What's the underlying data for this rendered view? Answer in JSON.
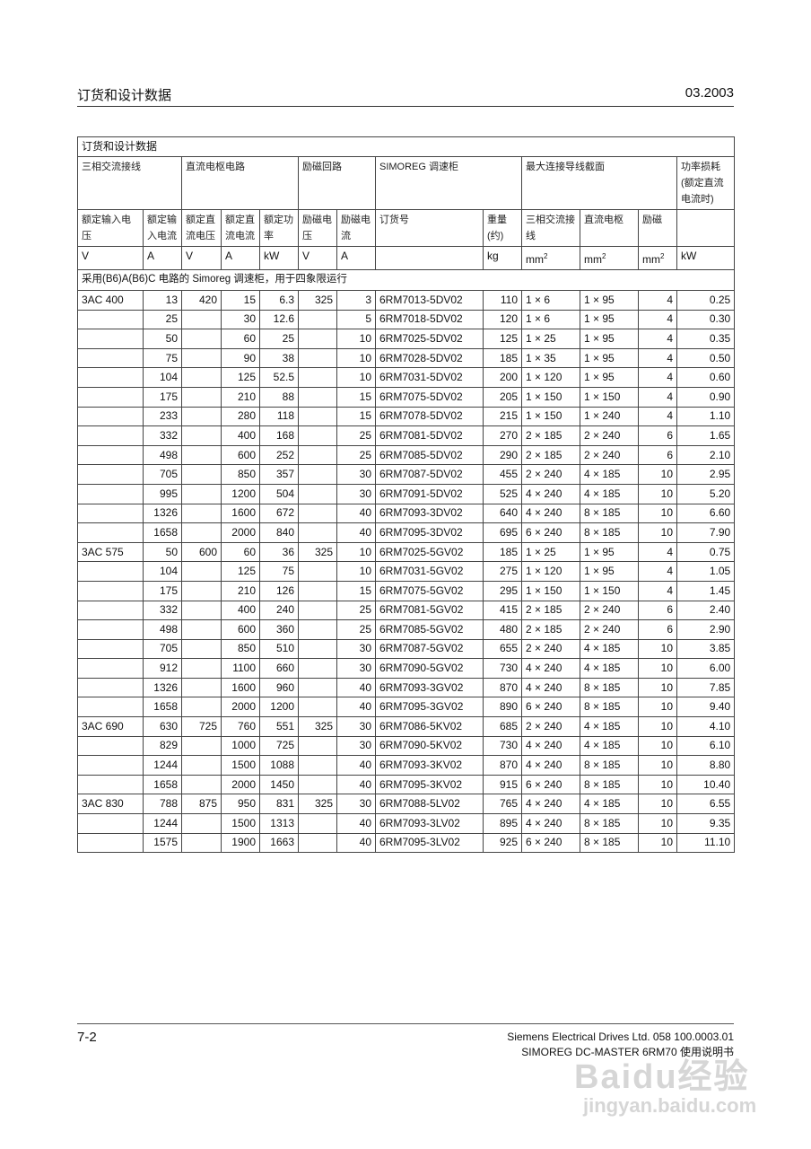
{
  "header": {
    "title": "订货和设计数据",
    "date": "03.2003"
  },
  "table": {
    "title": "订货和设计数据",
    "groups": [
      "三相交流接线",
      "直流电枢电路",
      "励磁回路",
      "SIMOREG 调速柜",
      "最大连接导线截面",
      "功率损耗(额定直流电流时)"
    ],
    "subheaders": [
      "额定输入电压",
      "额定输入电流",
      "额定直流电压",
      "额定直流电流",
      "额定功率",
      "励磁电压",
      "励磁电流",
      "订货号",
      "重量(约)",
      "三相交流接线",
      "直流电枢",
      "励磁",
      ""
    ],
    "units": [
      "V",
      "A",
      "V",
      "A",
      "kW",
      "V",
      "A",
      "",
      "kg",
      "mm2",
      "mm2",
      "mm2",
      "kW"
    ],
    "note": "采用(B6)A(B6)C 电路的 Simoreg 调速柜，用于四象限运行",
    "rows": [
      [
        "3AC 400",
        "13",
        "420",
        "15",
        "6.3",
        "325",
        "3",
        "6RM7013-5DV02",
        "110",
        "1 × 6",
        "1 × 95",
        "4",
        "0.25"
      ],
      [
        "",
        "25",
        "",
        "30",
        "12.6",
        "",
        "5",
        "6RM7018-5DV02",
        "120",
        "1 × 6",
        "1 × 95",
        "4",
        "0.30"
      ],
      [
        "",
        "50",
        "",
        "60",
        "25",
        "",
        "10",
        "6RM7025-5DV02",
        "125",
        "1 × 25",
        "1 × 95",
        "4",
        "0.35"
      ],
      [
        "",
        "75",
        "",
        "90",
        "38",
        "",
        "10",
        "6RM7028-5DV02",
        "185",
        "1 × 35",
        "1 × 95",
        "4",
        "0.50"
      ],
      [
        "",
        "104",
        "",
        "125",
        "52.5",
        "",
        "10",
        "6RM7031-5DV02",
        "200",
        "1 × 120",
        "1 × 95",
        "4",
        "0.60"
      ],
      [
        "",
        "175",
        "",
        "210",
        "88",
        "",
        "15",
        "6RM7075-5DV02",
        "205",
        "1 × 150",
        "1 × 150",
        "4",
        "0.90"
      ],
      [
        "",
        "233",
        "",
        "280",
        "118",
        "",
        "15",
        "6RM7078-5DV02",
        "215",
        "1 × 150",
        "1 × 240",
        "4",
        "1.10"
      ],
      [
        "",
        "332",
        "",
        "400",
        "168",
        "",
        "25",
        "6RM7081-5DV02",
        "270",
        "2 × 185",
        "2 × 240",
        "6",
        "1.65"
      ],
      [
        "",
        "498",
        "",
        "600",
        "252",
        "",
        "25",
        "6RM7085-5DV02",
        "290",
        "2 × 185",
        "2 × 240",
        "6",
        "2.10"
      ],
      [
        "",
        "705",
        "",
        "850",
        "357",
        "",
        "30",
        "6RM7087-5DV02",
        "455",
        "2 × 240",
        "4 × 185",
        "10",
        "2.95"
      ],
      [
        "",
        "995",
        "",
        "1200",
        "504",
        "",
        "30",
        "6RM7091-5DV02",
        "525",
        "4 × 240",
        "4 × 185",
        "10",
        "5.20"
      ],
      [
        "",
        "1326",
        "",
        "1600",
        "672",
        "",
        "40",
        "6RM7093-3DV02",
        "640",
        "4 × 240",
        "8 × 185",
        "10",
        "6.60"
      ],
      [
        "",
        "1658",
        "",
        "2000",
        "840",
        "",
        "40",
        "6RM7095-3DV02",
        "695",
        "6 × 240",
        "8 × 185",
        "10",
        "7.90"
      ],
      [
        "3AC 575",
        "50",
        "600",
        "60",
        "36",
        "325",
        "10",
        "6RM7025-5GV02",
        "185",
        "1 × 25",
        "1 × 95",
        "4",
        "0.75"
      ],
      [
        "",
        "104",
        "",
        "125",
        "75",
        "",
        "10",
        "6RM7031-5GV02",
        "275",
        "1 × 120",
        "1 × 95",
        "4",
        "1.05"
      ],
      [
        "",
        "175",
        "",
        "210",
        "126",
        "",
        "15",
        "6RM7075-5GV02",
        "295",
        "1 × 150",
        "1 × 150",
        "4",
        "1.45"
      ],
      [
        "",
        "332",
        "",
        "400",
        "240",
        "",
        "25",
        "6RM7081-5GV02",
        "415",
        "2 × 185",
        "2 × 240",
        "6",
        "2.40"
      ],
      [
        "",
        "498",
        "",
        "600",
        "360",
        "",
        "25",
        "6RM7085-5GV02",
        "480",
        "2 × 185",
        "2 × 240",
        "6",
        "2.90"
      ],
      [
        "",
        "705",
        "",
        "850",
        "510",
        "",
        "30",
        "6RM7087-5GV02",
        "655",
        "2 × 240",
        "4 × 185",
        "10",
        "3.85"
      ],
      [
        "",
        "912",
        "",
        "1100",
        "660",
        "",
        "30",
        "6RM7090-5GV02",
        "730",
        "4 × 240",
        "4 × 185",
        "10",
        "6.00"
      ],
      [
        "",
        "1326",
        "",
        "1600",
        "960",
        "",
        "40",
        "6RM7093-3GV02",
        "870",
        "4 × 240",
        "8 × 185",
        "10",
        "7.85"
      ],
      [
        "",
        "1658",
        "",
        "2000",
        "1200",
        "",
        "40",
        "6RM7095-3GV02",
        "890",
        "6 × 240",
        "8 × 185",
        "10",
        "9.40"
      ],
      [
        "3AC 690",
        "630",
        "725",
        "760",
        "551",
        "325",
        "30",
        "6RM7086-5KV02",
        "685",
        "2 × 240",
        "4 × 185",
        "10",
        "4.10"
      ],
      [
        "",
        "829",
        "",
        "1000",
        "725",
        "",
        "30",
        "6RM7090-5KV02",
        "730",
        "4 × 240",
        "4 × 185",
        "10",
        "6.10"
      ],
      [
        "",
        "1244",
        "",
        "1500",
        "1088",
        "",
        "40",
        "6RM7093-3KV02",
        "870",
        "4 × 240",
        "8 × 185",
        "10",
        "8.80"
      ],
      [
        "",
        "1658",
        "",
        "2000",
        "1450",
        "",
        "40",
        "6RM7095-3KV02",
        "915",
        "6 × 240",
        "8 × 185",
        "10",
        "10.40"
      ],
      [
        "3AC 830",
        "788",
        "875",
        "950",
        "831",
        "325",
        "30",
        "6RM7088-5LV02",
        "765",
        "4 × 240",
        "4 × 185",
        "10",
        "6.55"
      ],
      [
        "",
        "1244",
        "",
        "1500",
        "1313",
        "",
        "40",
        "6RM7093-3LV02",
        "895",
        "4 × 240",
        "8 × 185",
        "10",
        "9.35"
      ],
      [
        "",
        "1575",
        "",
        "1900",
        "1663",
        "",
        "40",
        "6RM7095-3LV02",
        "925",
        "6 × 240",
        "8 × 185",
        "10",
        "11.10"
      ]
    ]
  },
  "footer": {
    "page": "7-2",
    "line1": "Siemens Electrical Drives Ltd. 058 100.0003.01",
    "line2": "SIMOREG DC-MASTER 6RM70 使用说明书"
  },
  "watermark": {
    "logo": "Baidu经验",
    "url": "jingyan.baidu.com"
  }
}
